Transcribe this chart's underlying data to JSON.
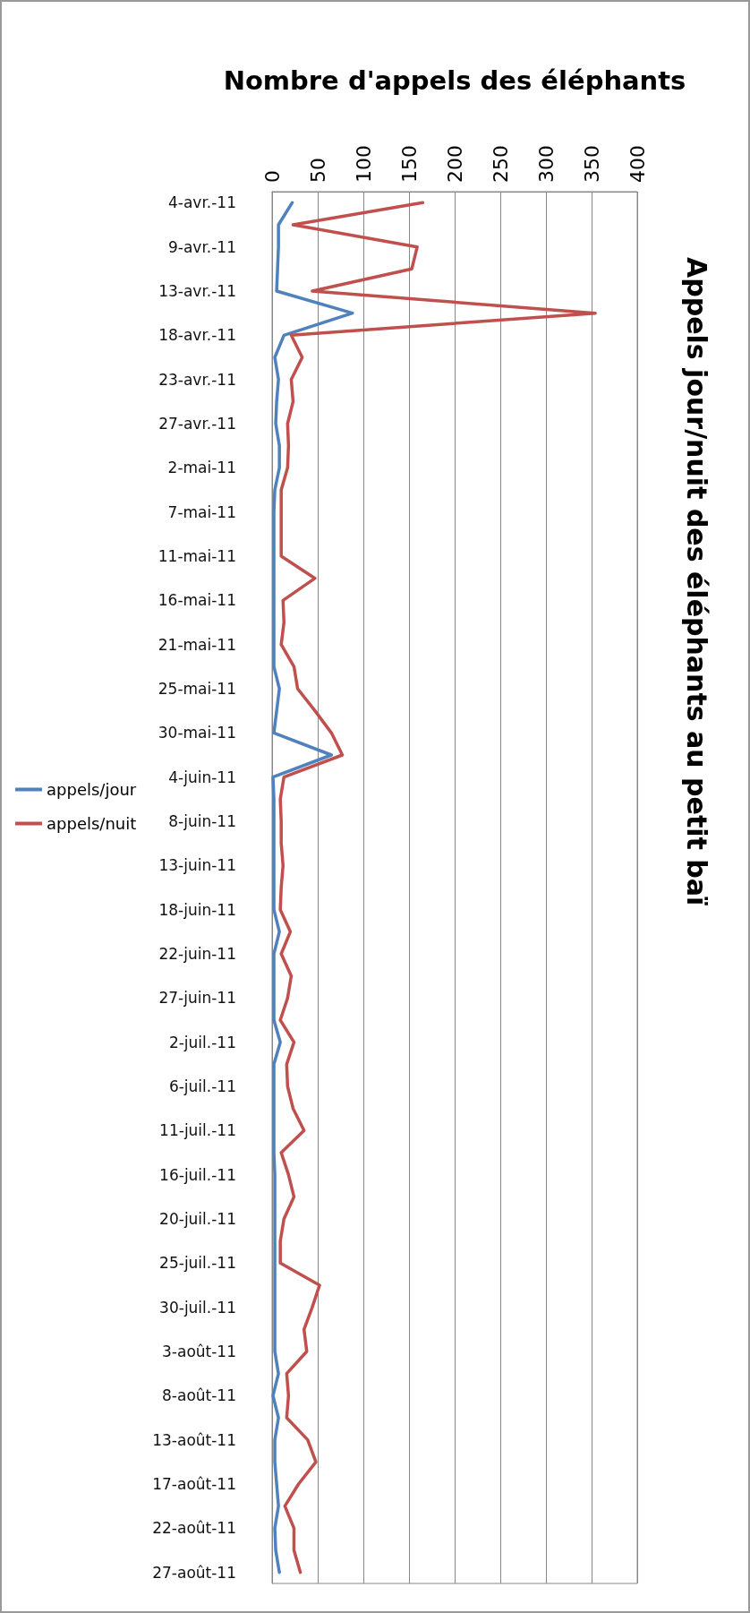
{
  "chart_data": {
    "type": "line",
    "orientation": "horizontal",
    "title": "Appels jour/nuit des éléphants au petit baï",
    "xlabel": "Nombre d'appels des éléphants",
    "categories": [
      "4-avr.-11",
      null,
      "9-avr.-11",
      null,
      "13-avr.-11",
      null,
      "18-avr.-11",
      null,
      "23-avr.-11",
      null,
      "27-avr.-11",
      null,
      "2-mai-11",
      null,
      "7-mai-11",
      null,
      "11-mai-11",
      null,
      "16-mai-11",
      null,
      "21-mai-11",
      null,
      "25-mai-11",
      null,
      "30-mai-11",
      null,
      "4-juin-11",
      null,
      "8-juin-11",
      null,
      "13-juin-11",
      null,
      "18-juin-11",
      null,
      "22-juin-11",
      null,
      "27-juin-11",
      null,
      "2-juil.-11",
      null,
      "6-juil.-11",
      null,
      "11-juil.-11",
      null,
      "16-juil.-11",
      null,
      "20-juil.-11",
      null,
      "25-juil.-11",
      null,
      "30-juil.-11",
      null,
      "3-août-11",
      null,
      "8-août-11",
      null,
      "13-août-11",
      null,
      "17-août-11",
      null,
      "22-août-11",
      null,
      "27-août-11"
    ],
    "series": [
      {
        "name": "appels/jour",
        "color": "#4f81bd",
        "values": [
          22,
          7,
          7,
          6,
          5,
          88,
          13,
          3,
          7,
          5,
          4,
          8,
          8,
          3,
          2,
          2,
          2,
          2,
          2,
          2,
          2,
          2,
          8,
          5,
          2,
          65,
          1,
          2,
          2,
          2,
          2,
          2,
          2,
          8,
          2,
          2,
          2,
          2,
          9,
          2,
          2,
          2,
          2,
          2,
          3,
          3,
          3,
          3,
          3,
          3,
          3,
          3,
          3,
          7,
          1,
          7,
          3,
          3,
          5,
          7,
          3,
          4,
          8
        ]
      },
      {
        "name": "appels/nuit",
        "color": "#c0504d",
        "values": [
          165,
          23,
          159,
          153,
          44,
          354,
          21,
          33,
          21,
          23,
          17,
          18,
          17,
          10,
          10,
          10,
          10,
          47,
          12,
          13,
          10,
          24,
          28,
          47,
          65,
          77,
          13,
          9,
          10,
          10,
          12,
          10,
          9,
          20,
          10,
          21,
          17,
          9,
          24,
          16,
          17,
          23,
          35,
          10,
          18,
          24,
          13,
          9,
          9,
          52,
          44,
          35,
          38,
          16,
          18,
          16,
          39,
          48,
          29,
          14,
          24,
          24,
          31
        ]
      }
    ],
    "xlim": [
      0,
      400
    ],
    "xticks": [
      0,
      50,
      100,
      150,
      200,
      250,
      300,
      350,
      400
    ],
    "grid": "x",
    "legend": "left",
    "marker": "none",
    "line_style": "solid"
  }
}
